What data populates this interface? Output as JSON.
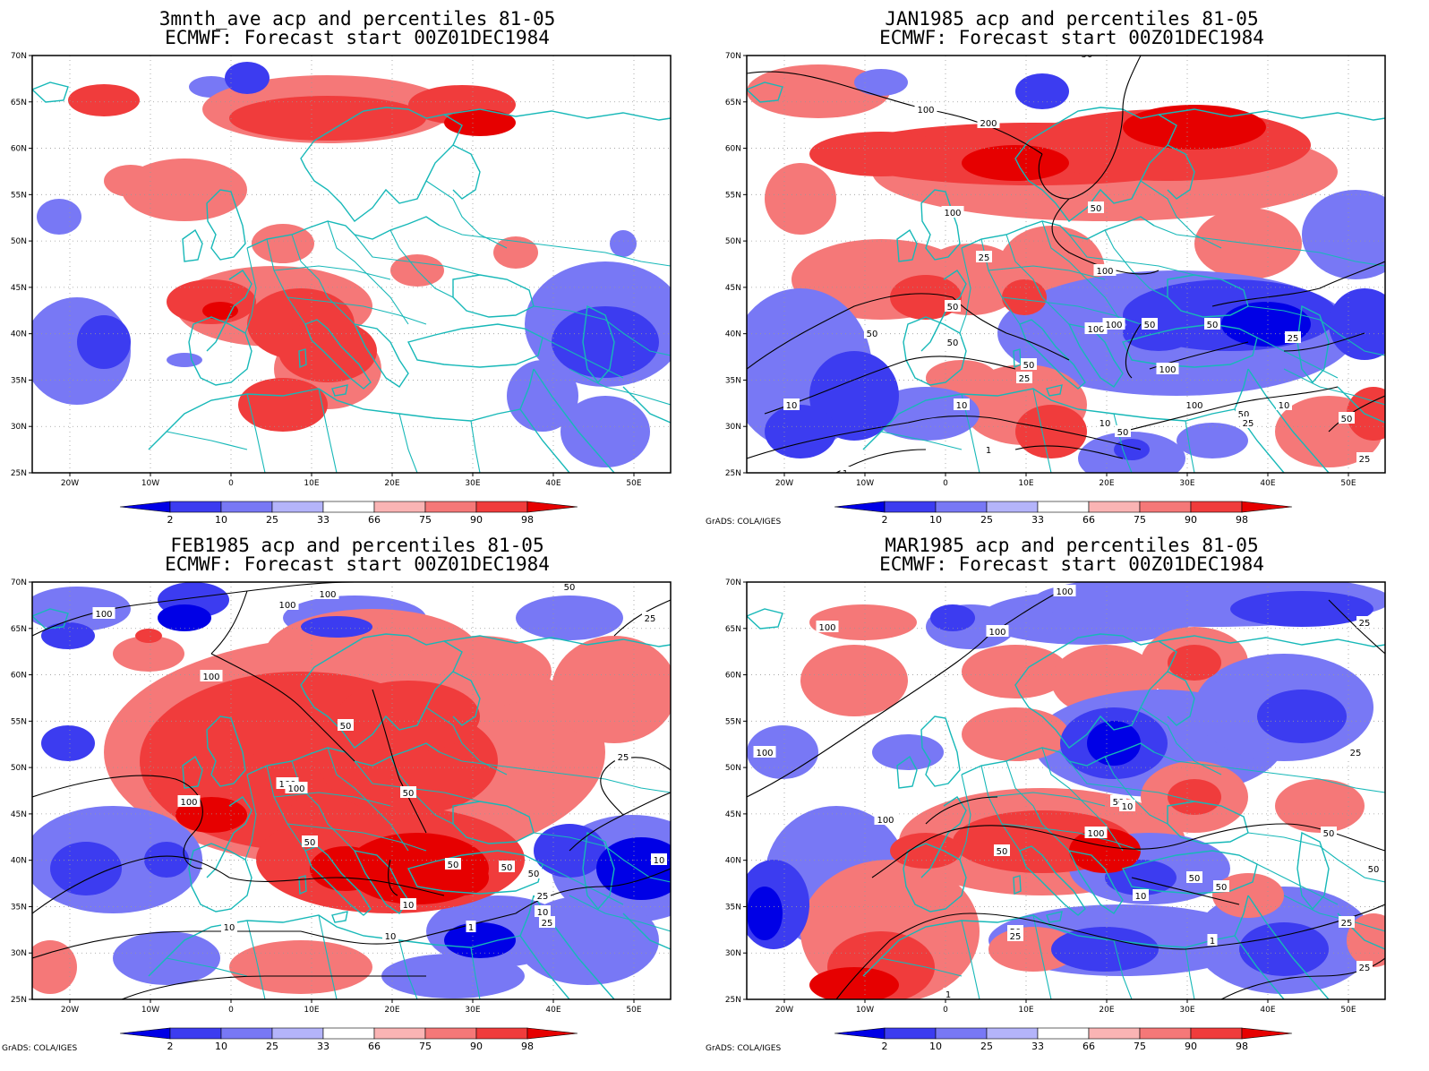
{
  "map_frame": {
    "lat_labels": [
      "70N",
      "65N",
      "60N",
      "55N",
      "50N",
      "45N",
      "40N",
      "35N",
      "30N",
      "25N"
    ],
    "lon_labels": [
      "20W",
      "10W",
      "0",
      "10E",
      "20E",
      "30E",
      "40E",
      "50E"
    ]
  },
  "colorbar": {
    "labels": [
      "2",
      "10",
      "25",
      "33",
      "66",
      "75",
      "90",
      "98"
    ],
    "colors": [
      "#0000e6",
      "#3c3cf0",
      "#7878f5",
      "#b4b4fa",
      "#ffffff",
      "#fab4b4",
      "#f57878",
      "#f03c3c",
      "#e60000"
    ]
  },
  "panels": [
    {
      "title_line1": "3mnth_ave acp and percentiles 81-05",
      "title_line2": "ECMWF: Forecast start 00Z01DEC1984",
      "credit": "",
      "contour_labels": []
    },
    {
      "title_line1": "JAN1985 acp and percentiles 81-05",
      "title_line2": "ECMWF: Forecast start 00Z01DEC1984",
      "credit": "GrADS: COLA/IGES",
      "contour_labels": [
        "100",
        "200",
        "50",
        "100",
        "50",
        "25",
        "100",
        "50",
        "50",
        "50",
        "100",
        "100",
        "50",
        "10",
        "25",
        "50",
        "100",
        "100",
        "50",
        "25",
        "10",
        "50",
        "10",
        "1",
        "1",
        "50",
        "25",
        "10",
        "50",
        "25"
      ]
    },
    {
      "title_line1": "FEB1985 acp and percentiles 81-05",
      "title_line2": "ECMWF: Forecast start 00Z01DEC1984",
      "credit": "GrADS: COLA/IGES",
      "contour_labels": [
        "100",
        "100",
        "100",
        "50",
        "25",
        "100",
        "50",
        "25",
        "100",
        "50",
        "100",
        "100",
        "50",
        "50",
        "50",
        "25",
        "10",
        "25",
        "10",
        "10",
        "10",
        "1",
        "10",
        "50"
      ]
    },
    {
      "title_line1": "MAR1985 acp and percentiles 81-05",
      "title_line2": "ECMWF: Forecast start 00Z01DEC1984",
      "credit": "GrADS: COLA/IGES",
      "contour_labels": [
        "100",
        "100",
        "100",
        "25",
        "100",
        "25",
        "100",
        "50",
        "100",
        "50",
        "50",
        "50",
        "50",
        "50",
        "25",
        "10",
        "10",
        "50",
        "25",
        "1",
        "25",
        "1"
      ]
    }
  ]
}
